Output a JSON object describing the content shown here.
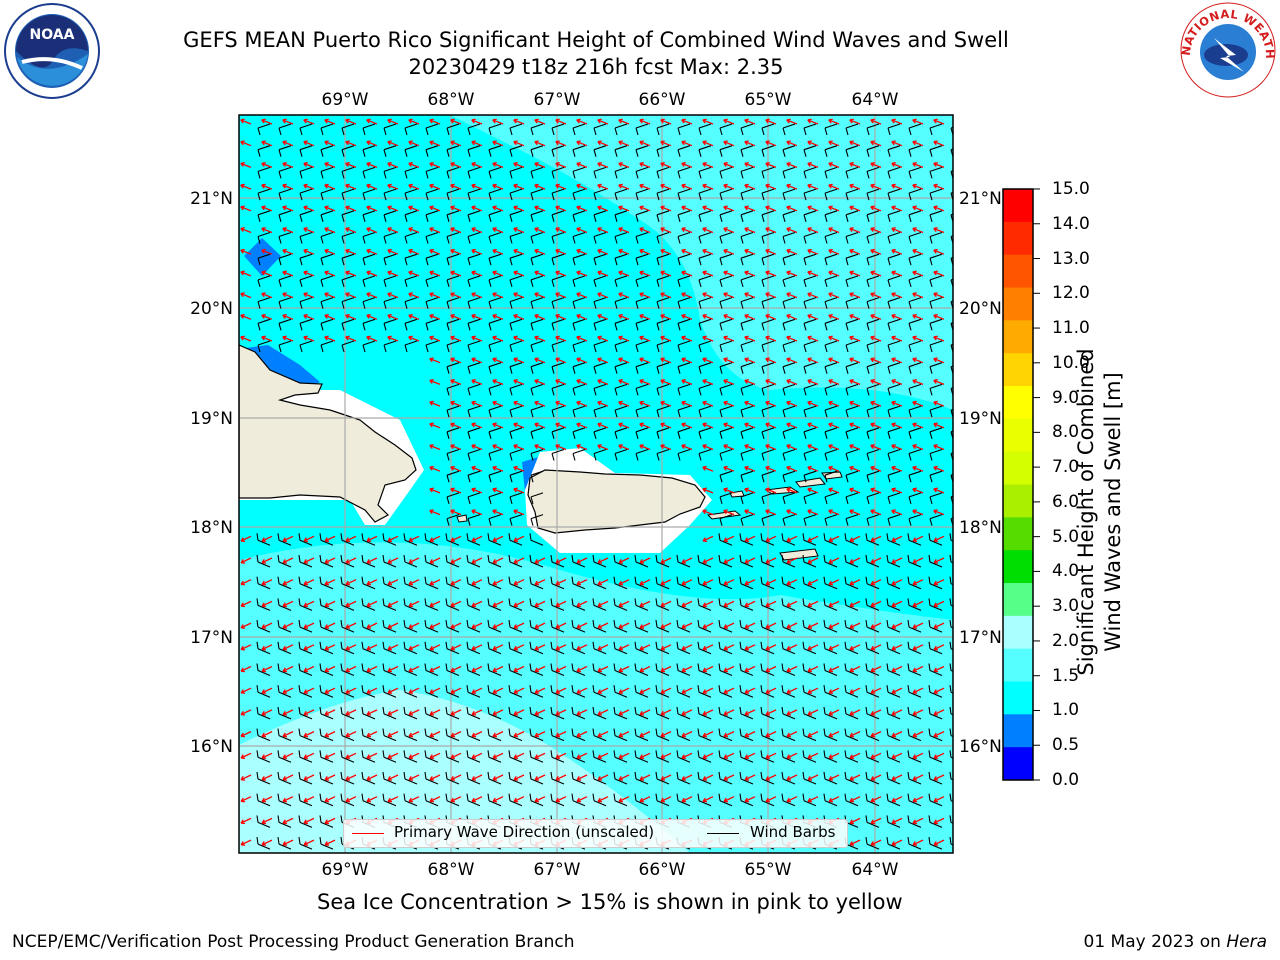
{
  "header": {
    "title_line1": "GEFS MEAN Puerto Rico Significant Height of Combined Wind Waves and Swell",
    "title_line2": "20230429 t18z 216h fcst   Max: 2.35"
  },
  "map": {
    "lon_labels": [
      "69°W",
      "68°W",
      "67°W",
      "66°W",
      "65°W",
      "64°W"
    ],
    "lat_labels": [
      "21°N",
      "20°N",
      "19°N",
      "18°N",
      "17°N",
      "16°N"
    ],
    "land_color": "#efecdc",
    "ocean_color": "#00ffff"
  },
  "legend": {
    "primary_wave": "Primary Wave Direction (unscaled)",
    "wind_barbs": "Wind Barbs",
    "primary_wave_color": "#ff0000",
    "wind_barb_color": "#000000"
  },
  "colorbar": {
    "label_line1": "Significant Height of Combined",
    "label_line2": "Wind Waves and Swell [m]",
    "ticks": [
      "15.0",
      "14.0",
      "13.0",
      "12.0",
      "11.0",
      "10.0",
      "9.0",
      "8.0",
      "7.0",
      "6.0",
      "5.0",
      "4.0",
      "3.0",
      "2.0",
      "1.5",
      "1.0",
      "0.5",
      "0.0"
    ],
    "colors_top_to_bottom": [
      "#ff0000",
      "#ff2a00",
      "#ff5500",
      "#ff8000",
      "#ffaa00",
      "#ffd400",
      "#ffff00",
      "#eaff00",
      "#d4ff00",
      "#aaee00",
      "#55dd00",
      "#00dd00",
      "#55ff88",
      "#aaffff",
      "#55ffff",
      "#00ffff",
      "#0080ff",
      "#0000ff"
    ]
  },
  "footer": {
    "sea_ice_note": "Sea Ice Concentration > 15% is shown in pink to yellow",
    "credit": "NCEP/EMC/Verification Post Processing Product Generation Branch",
    "date": "01 May 2023 on ",
    "host": "Hera"
  },
  "logos": {
    "noaa_text": "NOAA",
    "nws_text": "NATIONAL WEATHER SERVICE"
  }
}
